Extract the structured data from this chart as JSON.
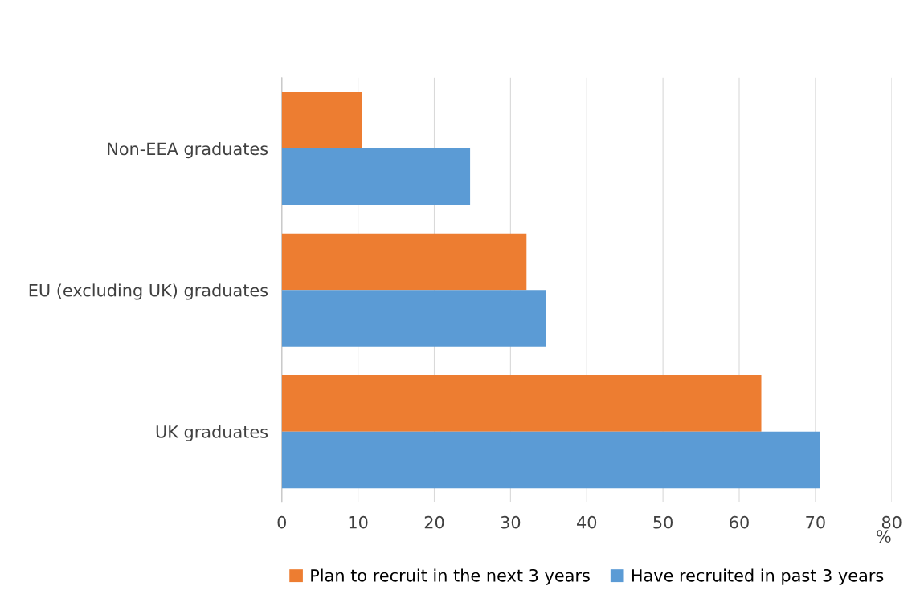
{
  "chart_data": {
    "type": "bar",
    "orientation": "horizontal",
    "categories": [
      "Non-EEA graduates",
      "EU (excluding UK) graduates",
      "UK graduates"
    ],
    "series": [
      {
        "name": "Plan to recruit in the next 3 years",
        "color": "#ed7d31",
        "values": [
          10.5,
          32.1,
          62.9
        ]
      },
      {
        "name": "Have recruited in past 3 years",
        "color": "#5b9bd5",
        "values": [
          24.7,
          34.6,
          70.6
        ]
      }
    ],
    "xlim": [
      0,
      80
    ],
    "xticks": [
      0,
      10,
      20,
      30,
      40,
      50,
      60,
      70,
      80
    ],
    "xlabel": "%",
    "grid": "x",
    "legend": "bottom"
  }
}
